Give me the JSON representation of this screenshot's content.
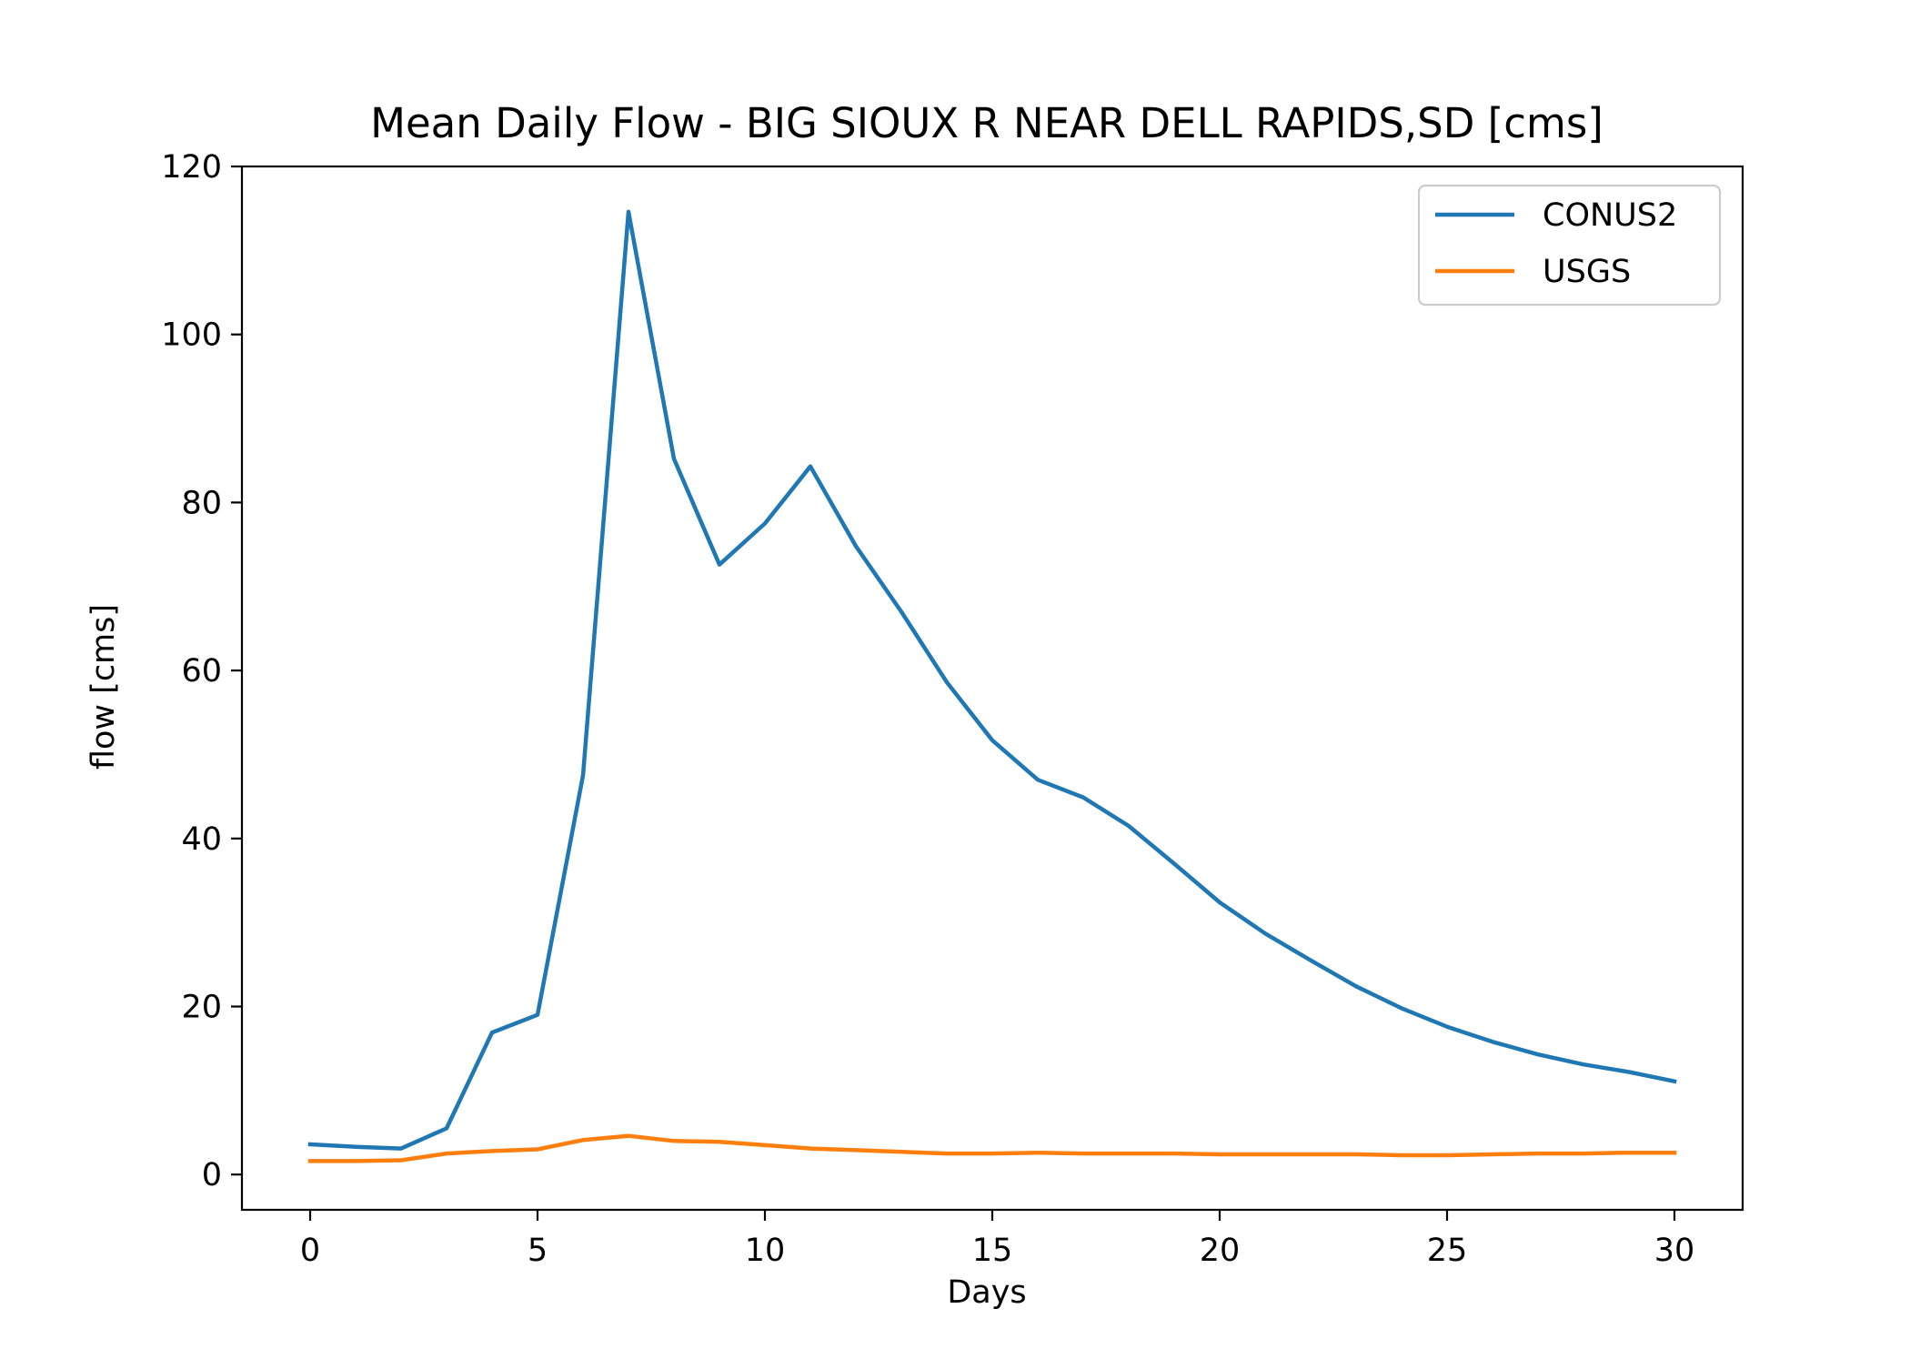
{
  "chart_data": {
    "type": "line",
    "title": "Mean Daily Flow - BIG SIOUX R NEAR DELL RAPIDS,SD [cms]",
    "xlabel": "Days",
    "ylabel": "flow [cms]",
    "xlim": [
      -1.5,
      31.5
    ],
    "ylim": [
      -4.2,
      120
    ],
    "xticks": [
      0,
      5,
      10,
      15,
      20,
      25,
      30
    ],
    "yticks": [
      0,
      20,
      40,
      60,
      80,
      100,
      120
    ],
    "grid": false,
    "legend_position": "top-right",
    "x": [
      0,
      1,
      2,
      3,
      4,
      5,
      6,
      7,
      8,
      9,
      10,
      11,
      12,
      13,
      14,
      15,
      16,
      17,
      18,
      19,
      20,
      21,
      22,
      23,
      24,
      25,
      26,
      27,
      28,
      29,
      30
    ],
    "series": [
      {
        "name": "CONUS2",
        "color": "#1f77b4",
        "values": [
          3.6,
          3.3,
          3.1,
          5.5,
          16.9,
          19.0,
          47.5,
          114.6,
          85.2,
          72.6,
          77.5,
          84.3,
          74.8,
          67.0,
          58.6,
          51.7,
          47.0,
          44.9,
          41.5,
          37.0,
          32.4,
          28.7,
          25.5,
          22.4,
          19.8,
          17.6,
          15.8,
          14.3,
          13.1,
          12.2,
          11.1
        ],
        "label_bind": "legend.series_0"
      },
      {
        "name": "USGS",
        "color": "#ff7f0e",
        "values": [
          1.6,
          1.6,
          1.7,
          2.5,
          2.8,
          3.0,
          4.1,
          4.6,
          4.0,
          3.9,
          3.5,
          3.1,
          2.9,
          2.7,
          2.5,
          2.5,
          2.6,
          2.5,
          2.5,
          2.5,
          2.4,
          2.4,
          2.4,
          2.4,
          2.3,
          2.3,
          2.4,
          2.5,
          2.5,
          2.6,
          2.6
        ],
        "label_bind": "legend.series_1"
      }
    ]
  },
  "legend": {
    "series_0": "CONUS2",
    "series_1": "USGS"
  }
}
